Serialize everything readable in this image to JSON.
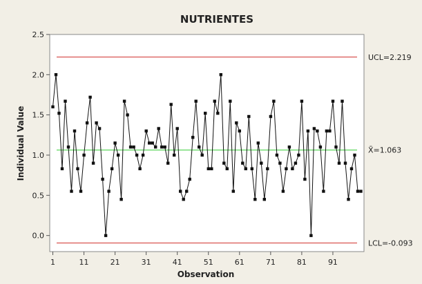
{
  "chart_data": {
    "type": "line",
    "chart_kind": "individuals control chart",
    "title": "NUTRIENTES",
    "xlabel": "Observation",
    "ylabel": "Individual Value",
    "xlim": [
      0,
      101
    ],
    "ylim": [
      -0.2,
      2.5
    ],
    "x_ticks": [
      1,
      11,
      21,
      31,
      41,
      51,
      61,
      71,
      81,
      91
    ],
    "y_ticks": [
      0.0,
      0.5,
      1.0,
      1.5,
      2.0,
      2.5
    ],
    "y_tick_labels": [
      "0.0",
      "0.5",
      "1.0",
      "1.5",
      "2.0",
      "2.5"
    ],
    "grid": false,
    "control_limits": {
      "ucl": {
        "value": 2.219,
        "label": "UCL=2.219",
        "color": "#d9534f"
      },
      "center": {
        "value": 1.063,
        "label": "X̄=1.063",
        "color": "#5cd65c"
      },
      "lcl": {
        "value": -0.093,
        "label": "LCL=-0.093",
        "color": "#d9534f"
      }
    },
    "series": [
      {
        "marker": "square",
        "color": "#111111",
        "x": [
          1,
          2,
          3,
          4,
          5,
          6,
          7,
          8,
          9,
          10,
          11,
          12,
          13,
          14,
          15,
          16,
          17,
          18,
          19,
          20,
          21,
          22,
          23,
          24,
          25,
          26,
          27,
          28,
          29,
          30,
          31,
          32,
          33,
          34,
          35,
          36,
          37,
          38,
          39,
          40,
          41,
          42,
          43,
          44,
          45,
          46,
          47,
          48,
          49,
          50,
          51,
          52,
          53,
          54,
          55,
          56,
          57,
          58,
          59,
          60,
          61,
          62,
          63,
          64,
          65,
          66,
          67,
          68,
          69,
          70,
          71,
          72,
          73,
          74,
          75,
          76,
          77,
          78,
          79,
          80,
          81,
          82,
          83,
          84,
          85,
          86,
          87,
          88,
          89,
          90,
          91,
          92,
          93,
          94,
          95,
          96,
          97,
          98,
          99,
          100
        ],
        "values": [
          1.6,
          2.0,
          1.52,
          0.83,
          1.67,
          1.1,
          0.55,
          1.3,
          0.83,
          0.55,
          1.0,
          1.4,
          1.72,
          0.9,
          1.4,
          1.33,
          0.7,
          0.0,
          0.55,
          0.83,
          1.15,
          1.0,
          0.45,
          1.67,
          1.5,
          1.1,
          1.1,
          1.0,
          0.83,
          1.0,
          1.3,
          1.15,
          1.15,
          1.1,
          1.33,
          1.1,
          1.1,
          0.9,
          1.63,
          1.0,
          1.33,
          0.55,
          0.45,
          0.55,
          0.7,
          1.22,
          1.67,
          1.1,
          1.0,
          1.52,
          0.83,
          0.83,
          1.67,
          1.52,
          2.0,
          0.9,
          0.83,
          1.67,
          0.55,
          1.4,
          1.3,
          0.9,
          0.83,
          1.48,
          0.83,
          0.45,
          1.15,
          0.9,
          0.45,
          0.83,
          1.48,
          1.67,
          1.0,
          0.9,
          0.55,
          0.83,
          1.1,
          0.83,
          0.9,
          1.0,
          1.67,
          0.7,
          1.3,
          0.0,
          1.33,
          1.3,
          1.1,
          0.55,
          1.3,
          1.3,
          1.67,
          1.1,
          0.9,
          1.67,
          0.9,
          0.45,
          0.83,
          1.0,
          0.55,
          0.55
        ]
      }
    ]
  }
}
